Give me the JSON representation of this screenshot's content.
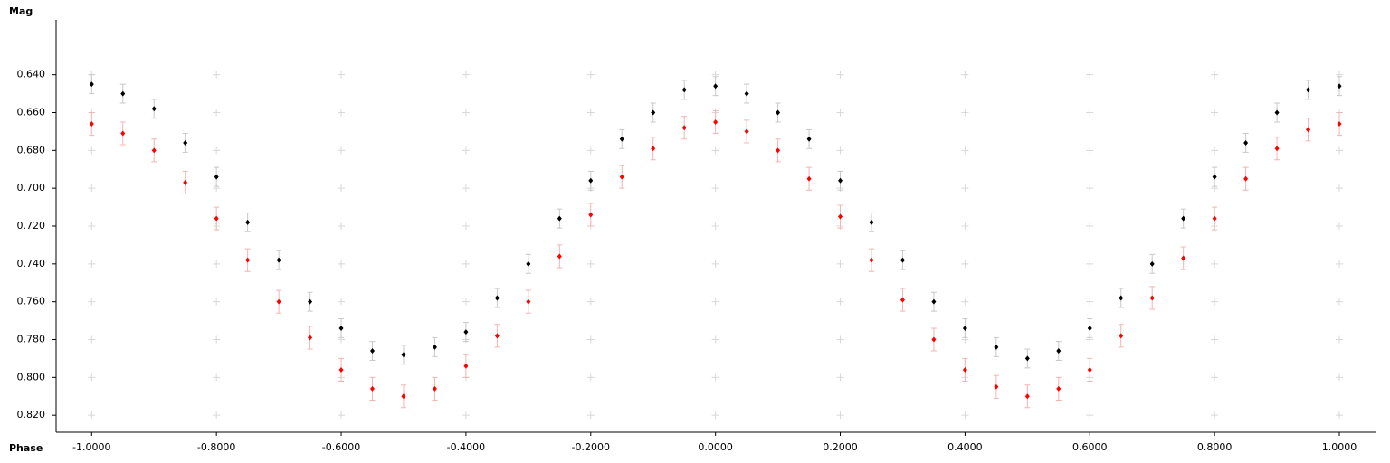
{
  "chart_data": {
    "type": "scatter",
    "x_label": "Phase",
    "y_label": "Mag",
    "y_inverted": true,
    "grid": true,
    "xlim": [
      -1.057,
      1.058
    ],
    "ylim": [
      0.611,
      0.829
    ],
    "xticks": [
      {
        "value": -1,
        "label": "-1.0000"
      },
      {
        "value": -0.8,
        "label": "-0.8000"
      },
      {
        "value": -0.6,
        "label": "-0.6000"
      },
      {
        "value": -0.4,
        "label": "-0.4000"
      },
      {
        "value": -0.2,
        "label": "-0.2000"
      },
      {
        "value": 0,
        "label": "0.0000"
      },
      {
        "value": 0.2,
        "label": "0.2000"
      },
      {
        "value": 0.4,
        "label": "0.4000"
      },
      {
        "value": 0.6,
        "label": "0.6000"
      },
      {
        "value": 0.8,
        "label": "0.8000"
      },
      {
        "value": 1,
        "label": "1.0000"
      }
    ],
    "yticks": [
      {
        "value": 0.64,
        "label": "0.640"
      },
      {
        "value": 0.66,
        "label": "0.660"
      },
      {
        "value": 0.68,
        "label": "0.680"
      },
      {
        "value": 0.7,
        "label": "0.700"
      },
      {
        "value": 0.72,
        "label": "0.720"
      },
      {
        "value": 0.74,
        "label": "0.740"
      },
      {
        "value": 0.76,
        "label": "0.760"
      },
      {
        "value": 0.78,
        "label": "0.780"
      },
      {
        "value": 0.8,
        "label": "0.800"
      },
      {
        "value": 0.82,
        "label": "0.820"
      }
    ],
    "x": [
      -1,
      -0.95,
      -0.9,
      -0.85,
      -0.8,
      -0.75,
      -0.7,
      -0.65,
      -0.6,
      -0.55,
      -0.5,
      -0.45,
      -0.4,
      -0.35,
      -0.3,
      -0.25,
      -0.2,
      -0.15,
      -0.1,
      -0.05,
      0,
      0.05,
      0.1,
      0.15,
      0.2,
      0.25,
      0.3,
      0.35,
      0.4,
      0.45,
      0.5,
      0.55,
      0.6,
      0.65,
      0.7,
      0.75,
      0.8,
      0.85,
      0.9,
      0.95,
      1
    ],
    "series": [
      {
        "color": "#000000",
        "error_color": "#c8c8c8",
        "values": [
          0.645,
          0.65,
          0.658,
          0.676,
          0.694,
          0.718,
          0.738,
          0.76,
          0.774,
          0.786,
          0.788,
          0.784,
          0.776,
          0.758,
          0.74,
          0.716,
          0.696,
          0.674,
          0.66,
          0.648,
          0.646,
          0.65,
          0.66,
          0.674,
          0.696,
          0.718,
          0.738,
          0.76,
          0.774,
          0.784,
          0.79,
          0.786,
          0.774,
          0.758,
          0.74,
          0.716,
          0.694,
          0.676,
          0.66,
          0.648,
          0.646
        ],
        "errors": [
          0.005,
          0.005,
          0.005,
          0.005,
          0.005,
          0.005,
          0.005,
          0.005,
          0.005,
          0.005,
          0.005,
          0.005,
          0.005,
          0.005,
          0.005,
          0.005,
          0.005,
          0.005,
          0.005,
          0.005,
          0.005,
          0.005,
          0.005,
          0.005,
          0.005,
          0.005,
          0.005,
          0.005,
          0.005,
          0.005,
          0.005,
          0.005,
          0.005,
          0.005,
          0.005,
          0.005,
          0.005,
          0.005,
          0.005,
          0.005,
          0.005
        ]
      },
      {
        "color": "#ff0000",
        "error_color": "#f4b4b4",
        "values": [
          0.666,
          0.671,
          0.68,
          0.697,
          0.716,
          0.738,
          0.76,
          0.779,
          0.796,
          0.806,
          0.81,
          0.806,
          0.794,
          0.778,
          0.76,
          0.736,
          0.714,
          0.694,
          0.679,
          0.668,
          0.665,
          0.67,
          0.68,
          0.695,
          0.715,
          0.738,
          0.759,
          0.78,
          0.796,
          0.805,
          0.81,
          0.806,
          0.796,
          0.778,
          0.758,
          0.737,
          0.716,
          0.695,
          0.679,
          0.669,
          0.666
        ],
        "errors": [
          0.006,
          0.006,
          0.006,
          0.006,
          0.006,
          0.006,
          0.006,
          0.006,
          0.006,
          0.006,
          0.006,
          0.006,
          0.006,
          0.006,
          0.006,
          0.006,
          0.006,
          0.006,
          0.006,
          0.006,
          0.006,
          0.006,
          0.006,
          0.006,
          0.006,
          0.006,
          0.006,
          0.006,
          0.006,
          0.006,
          0.006,
          0.006,
          0.006,
          0.006,
          0.006,
          0.006,
          0.006,
          0.006,
          0.006,
          0.006,
          0.006
        ]
      }
    ]
  }
}
